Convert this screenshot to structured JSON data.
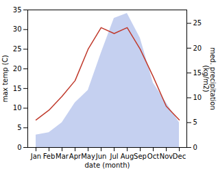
{
  "chart_data": {
    "type": "line",
    "categories": [
      "Jan",
      "Feb",
      "Mar",
      "Apr",
      "May",
      "Jun",
      "Jul",
      "Aug",
      "Sep",
      "Oct",
      "Nov",
      "Dec"
    ],
    "xlabel": "date (month)",
    "ylabel": "max temp (C)",
    "y2label": "med. precipitation\n(kg/m2)",
    "ylim": [
      0,
      35
    ],
    "yticks": [
      0,
      5,
      10,
      15,
      20,
      25,
      30,
      35
    ],
    "y2lim": [
      0,
      27.7
    ],
    "y2ticks": [
      0,
      5,
      10,
      15,
      20,
      25
    ],
    "grid": false,
    "series": [
      {
        "type": "area",
        "axis": "y2",
        "color": "#c5d0f0",
        "values": [
          2.5,
          3,
          5,
          9,
          11.5,
          19,
          26,
          27,
          22,
          13,
          9,
          5
        ]
      },
      {
        "type": "line",
        "color": "#c0392b",
        "values": [
          7,
          9.5,
          13,
          17,
          25,
          30.5,
          29,
          30.5,
          25,
          18,
          10.5,
          7
        ]
      }
    ]
  }
}
